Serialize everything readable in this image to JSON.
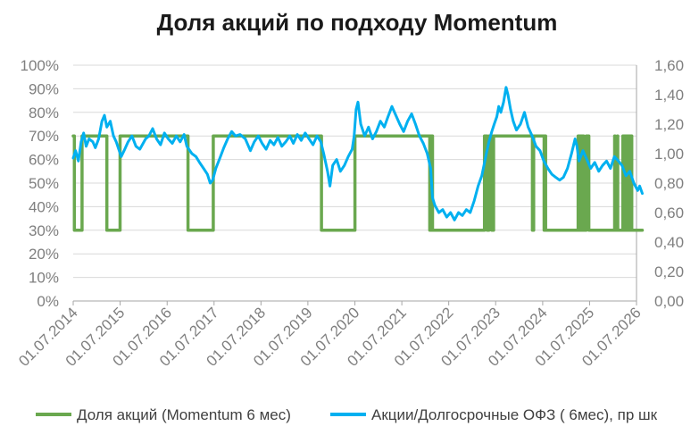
{
  "colors": {
    "equity_share": "#6aa84f",
    "ratio": "#00b0f0",
    "grid": "#d9d9d9",
    "axis": "#a6a6a6",
    "text": "#7f7f7f"
  },
  "chart_data": {
    "type": "line",
    "title": "Доля акций по подходу Momentum",
    "grid": true,
    "legend_position": "bottom",
    "x_range": [
      "01.07.2014",
      "01.07.2026"
    ],
    "x_ticks": [
      "01.07.2014",
      "01.07.2015",
      "01.07.2016",
      "01.07.2017",
      "01.07.2018",
      "01.07.2019",
      "01.07.2020",
      "01.07.2021",
      "01.07.2022",
      "01.07.2023",
      "01.07.2024",
      "01.07.2025",
      "01.07.2026"
    ],
    "y_left": {
      "min": 0,
      "max": 100,
      "step": 10,
      "ticks": [
        "0%",
        "10%",
        "20%",
        "30%",
        "40%",
        "50%",
        "60%",
        "70%",
        "80%",
        "90%",
        "100%"
      ]
    },
    "y_right": {
      "min": 0,
      "max": 1.6,
      "step": 0.2,
      "ticks": [
        "0,00",
        "0,20",
        "0,40",
        "0,60",
        "0,80",
        "1,00",
        "1,20",
        "1,40",
        "1,60"
      ]
    },
    "series": [
      {
        "name": "Доля акций (Momentum 6 мес)",
        "axis": "left",
        "style": "step",
        "points": [
          [
            "2014-07-01",
            70
          ],
          [
            "2014-07-10",
            30
          ],
          [
            "2014-09-01",
            30
          ],
          [
            "2014-09-08",
            70
          ],
          [
            "2015-03-10",
            70
          ],
          [
            "2015-03-20",
            30
          ],
          [
            "2015-06-20",
            30
          ],
          [
            "2015-07-01",
            70
          ],
          [
            "2016-12-01",
            70
          ],
          [
            "2016-12-10",
            30
          ],
          [
            "2017-06-15",
            30
          ],
          [
            "2017-06-25",
            70
          ],
          [
            "2019-10-05",
            70
          ],
          [
            "2019-10-15",
            30
          ],
          [
            "2020-06-20",
            30
          ],
          [
            "2020-07-01",
            70
          ],
          [
            "2022-02-01",
            70
          ],
          [
            "2022-02-03",
            30
          ],
          [
            "2022-02-05",
            70
          ],
          [
            "2022-02-07",
            30
          ],
          [
            "2022-02-09",
            70
          ],
          [
            "2022-02-11",
            30
          ],
          [
            "2022-02-13",
            70
          ],
          [
            "2022-02-15",
            30
          ],
          [
            "2022-02-17",
            70
          ],
          [
            "2022-02-19",
            30
          ],
          [
            "2022-02-22",
            70
          ],
          [
            "2022-02-25",
            30
          ],
          [
            "2023-04-01",
            30
          ],
          [
            "2023-04-05",
            70
          ],
          [
            "2023-04-20",
            70
          ],
          [
            "2023-04-25",
            30
          ],
          [
            "2023-05-05",
            30
          ],
          [
            "2023-05-10",
            70
          ],
          [
            "2023-05-25",
            70
          ],
          [
            "2023-06-01",
            30
          ],
          [
            "2023-06-10",
            30
          ],
          [
            "2023-06-15",
            70
          ],
          [
            "2024-04-10",
            70
          ],
          [
            "2024-04-12",
            30
          ],
          [
            "2024-04-14",
            70
          ],
          [
            "2024-04-16",
            30
          ],
          [
            "2024-04-18",
            70
          ],
          [
            "2024-04-20",
            30
          ],
          [
            "2024-04-22",
            70
          ],
          [
            "2024-07-10",
            70
          ],
          [
            "2024-07-12",
            30
          ],
          [
            "2024-07-14",
            70
          ],
          [
            "2024-07-16",
            30
          ],
          [
            "2024-07-18",
            70
          ],
          [
            "2024-07-20",
            30
          ],
          [
            "2024-07-22",
            70
          ],
          [
            "2024-07-24",
            30
          ],
          [
            "2025-04-01",
            30
          ],
          [
            "2025-04-03",
            70
          ],
          [
            "2025-04-06",
            30
          ],
          [
            "2025-04-09",
            70
          ],
          [
            "2025-04-12",
            30
          ],
          [
            "2025-04-15",
            70
          ],
          [
            "2025-04-18",
            30
          ],
          [
            "2025-04-21",
            70
          ],
          [
            "2025-04-24",
            30
          ],
          [
            "2025-04-27",
            70
          ],
          [
            "2025-04-30",
            30
          ],
          [
            "2025-05-04",
            70
          ],
          [
            "2025-05-08",
            30
          ],
          [
            "2025-05-12",
            70
          ],
          [
            "2025-05-16",
            30
          ],
          [
            "2025-06-01",
            30
          ],
          [
            "2025-06-05",
            70
          ],
          [
            "2025-06-20",
            70
          ],
          [
            "2025-06-25",
            30
          ],
          [
            "2026-01-10",
            30
          ],
          [
            "2026-01-12",
            70
          ],
          [
            "2026-01-15",
            30
          ],
          [
            "2026-01-30",
            30
          ],
          [
            "2026-02-02",
            70
          ],
          [
            "2026-02-05",
            30
          ],
          [
            "2026-03-15",
            30
          ],
          [
            "2026-03-17",
            70
          ],
          [
            "2026-03-19",
            30
          ],
          [
            "2026-03-21",
            70
          ],
          [
            "2026-03-23",
            30
          ],
          [
            "2026-03-25",
            70
          ],
          [
            "2026-03-27",
            30
          ],
          [
            "2026-03-29",
            70
          ],
          [
            "2026-04-01",
            30
          ],
          [
            "2026-04-03",
            70
          ],
          [
            "2026-04-06",
            30
          ],
          [
            "2026-04-09",
            70
          ],
          [
            "2026-04-12",
            30
          ],
          [
            "2026-04-15",
            70
          ],
          [
            "2026-04-18",
            30
          ],
          [
            "2026-04-21",
            70
          ],
          [
            "2026-04-24",
            30
          ],
          [
            "2026-04-27",
            70
          ],
          [
            "2026-04-30",
            30
          ],
          [
            "2026-05-04",
            70
          ],
          [
            "2026-05-08",
            30
          ],
          [
            "2026-05-12",
            70
          ],
          [
            "2026-05-16",
            30
          ],
          [
            "2026-05-20",
            70
          ],
          [
            "2026-05-25",
            30
          ],
          [
            "2026-08-15",
            30
          ]
        ]
      },
      {
        "name": "Акции/Долгосрочные ОФЗ ( 6мес), пр шк",
        "axis": "right",
        "style": "line",
        "points": [
          [
            "2014-07-01",
            0.97
          ],
          [
            "2014-07-20",
            1.02
          ],
          [
            "2014-08-10",
            0.95
          ],
          [
            "2014-09-01",
            1.08
          ],
          [
            "2014-09-20",
            1.14
          ],
          [
            "2014-10-10",
            1.05
          ],
          [
            "2014-11-01",
            1.1
          ],
          [
            "2014-12-01",
            1.08
          ],
          [
            "2014-12-20",
            1.04
          ],
          [
            "2015-01-15",
            1.1
          ],
          [
            "2015-02-10",
            1.22
          ],
          [
            "2015-03-01",
            1.26
          ],
          [
            "2015-03-20",
            1.18
          ],
          [
            "2015-04-15",
            1.22
          ],
          [
            "2015-05-10",
            1.12
          ],
          [
            "2015-06-01",
            1.08
          ],
          [
            "2015-06-20",
            1.03
          ],
          [
            "2015-07-10",
            0.98
          ],
          [
            "2015-08-01",
            1.02
          ],
          [
            "2015-09-01",
            1.08
          ],
          [
            "2015-10-01",
            1.12
          ],
          [
            "2015-11-01",
            1.05
          ],
          [
            "2015-12-01",
            1.03
          ],
          [
            "2016-01-15",
            1.1
          ],
          [
            "2016-02-10",
            1.12
          ],
          [
            "2016-03-10",
            1.17
          ],
          [
            "2016-04-10",
            1.1
          ],
          [
            "2016-05-10",
            1.06
          ],
          [
            "2016-06-10",
            1.14
          ],
          [
            "2016-07-10",
            1.1
          ],
          [
            "2016-08-10",
            1.07
          ],
          [
            "2016-09-10",
            1.12
          ],
          [
            "2016-10-10",
            1.08
          ],
          [
            "2016-11-10",
            1.13
          ],
          [
            "2016-12-01",
            1.05
          ],
          [
            "2017-01-10",
            1.0
          ],
          [
            "2017-02-10",
            0.98
          ],
          [
            "2017-03-10",
            0.94
          ],
          [
            "2017-04-10",
            0.9
          ],
          [
            "2017-05-10",
            0.86
          ],
          [
            "2017-06-01",
            0.8
          ],
          [
            "2017-06-20",
            0.82
          ],
          [
            "2017-07-15",
            0.9
          ],
          [
            "2017-08-15",
            0.97
          ],
          [
            "2017-09-15",
            1.04
          ],
          [
            "2017-10-15",
            1.1
          ],
          [
            "2017-11-15",
            1.15
          ],
          [
            "2017-12-15",
            1.12
          ],
          [
            "2018-01-20",
            1.13
          ],
          [
            "2018-03-01",
            1.1
          ],
          [
            "2018-04-10",
            1.02
          ],
          [
            "2018-05-10",
            1.08
          ],
          [
            "2018-06-10",
            1.12
          ],
          [
            "2018-07-10",
            1.07
          ],
          [
            "2018-08-10",
            1.03
          ],
          [
            "2018-09-10",
            1.09
          ],
          [
            "2018-10-10",
            1.06
          ],
          [
            "2018-11-10",
            1.11
          ],
          [
            "2018-12-10",
            1.05
          ],
          [
            "2019-01-10",
            1.08
          ],
          [
            "2019-02-10",
            1.12
          ],
          [
            "2019-03-10",
            1.07
          ],
          [
            "2019-04-10",
            1.13
          ],
          [
            "2019-05-10",
            1.09
          ],
          [
            "2019-06-10",
            1.14
          ],
          [
            "2019-07-10",
            1.1
          ],
          [
            "2019-08-10",
            1.06
          ],
          [
            "2019-09-10",
            1.12
          ],
          [
            "2019-10-10",
            1.08
          ],
          [
            "2019-11-01",
            1.0
          ],
          [
            "2019-12-01",
            0.88
          ],
          [
            "2019-12-20",
            0.78
          ],
          [
            "2020-01-10",
            0.92
          ],
          [
            "2020-02-10",
            0.96
          ],
          [
            "2020-03-10",
            0.88
          ],
          [
            "2020-04-10",
            0.92
          ],
          [
            "2020-05-10",
            0.98
          ],
          [
            "2020-06-10",
            1.03
          ],
          [
            "2020-06-25",
            1.12
          ],
          [
            "2020-07-10",
            1.3
          ],
          [
            "2020-07-25",
            1.35
          ],
          [
            "2020-08-15",
            1.2
          ],
          [
            "2020-09-15",
            1.12
          ],
          [
            "2020-10-15",
            1.18
          ],
          [
            "2020-11-15",
            1.1
          ],
          [
            "2020-12-15",
            1.15
          ],
          [
            "2021-01-15",
            1.22
          ],
          [
            "2021-02-15",
            1.18
          ],
          [
            "2021-03-15",
            1.25
          ],
          [
            "2021-04-15",
            1.32
          ],
          [
            "2021-05-15",
            1.26
          ],
          [
            "2021-06-15",
            1.2
          ],
          [
            "2021-07-15",
            1.15
          ],
          [
            "2021-08-15",
            1.22
          ],
          [
            "2021-09-15",
            1.27
          ],
          [
            "2021-10-15",
            1.2
          ],
          [
            "2021-11-15",
            1.12
          ],
          [
            "2021-12-15",
            1.07
          ],
          [
            "2022-01-15",
            1.0
          ],
          [
            "2022-02-10",
            0.9
          ],
          [
            "2022-02-25",
            0.7
          ],
          [
            "2022-03-15",
            0.65
          ],
          [
            "2022-04-15",
            0.6
          ],
          [
            "2022-05-15",
            0.62
          ],
          [
            "2022-06-15",
            0.57
          ],
          [
            "2022-07-15",
            0.6
          ],
          [
            "2022-08-15",
            0.55
          ],
          [
            "2022-09-15",
            0.6
          ],
          [
            "2022-10-15",
            0.58
          ],
          [
            "2022-11-15",
            0.62
          ],
          [
            "2022-12-15",
            0.6
          ],
          [
            "2023-01-15",
            0.68
          ],
          [
            "2023-02-15",
            0.78
          ],
          [
            "2023-03-15",
            0.85
          ],
          [
            "2023-04-01",
            0.92
          ],
          [
            "2023-04-20",
            1.0
          ],
          [
            "2023-05-10",
            1.08
          ],
          [
            "2023-06-01",
            1.15
          ],
          [
            "2023-06-20",
            1.2
          ],
          [
            "2023-07-10",
            1.25
          ],
          [
            "2023-07-25",
            1.32
          ],
          [
            "2023-08-10",
            1.28
          ],
          [
            "2023-09-01",
            1.35
          ],
          [
            "2023-09-20",
            1.45
          ],
          [
            "2023-10-05",
            1.4
          ],
          [
            "2023-10-25",
            1.3
          ],
          [
            "2023-11-15",
            1.22
          ],
          [
            "2023-12-10",
            1.16
          ],
          [
            "2024-01-10",
            1.2
          ],
          [
            "2024-02-10",
            1.28
          ],
          [
            "2024-03-10",
            1.18
          ],
          [
            "2024-04-10",
            1.12
          ],
          [
            "2024-05-10",
            1.05
          ],
          [
            "2024-06-10",
            1.02
          ],
          [
            "2024-07-10",
            0.95
          ],
          [
            "2024-08-10",
            0.9
          ],
          [
            "2024-09-10",
            0.86
          ],
          [
            "2024-10-10",
            0.84
          ],
          [
            "2024-11-10",
            0.82
          ],
          [
            "2024-12-10",
            0.84
          ],
          [
            "2025-01-10",
            0.9
          ],
          [
            "2025-02-10",
            1.0
          ],
          [
            "2025-03-10",
            1.1
          ],
          [
            "2025-03-25",
            1.05
          ],
          [
            "2025-04-10",
            0.95
          ],
          [
            "2025-05-10",
            1.02
          ],
          [
            "2025-06-10",
            0.96
          ],
          [
            "2025-07-10",
            0.9
          ],
          [
            "2025-08-10",
            0.94
          ],
          [
            "2025-09-10",
            0.88
          ],
          [
            "2025-10-10",
            0.92
          ],
          [
            "2025-11-10",
            0.95
          ],
          [
            "2025-12-10",
            0.9
          ],
          [
            "2026-01-10",
            0.98
          ],
          [
            "2026-02-10",
            0.95
          ],
          [
            "2026-03-10",
            0.92
          ],
          [
            "2026-04-10",
            0.85
          ],
          [
            "2026-05-10",
            0.88
          ],
          [
            "2026-06-10",
            0.8
          ],
          [
            "2026-07-10",
            0.75
          ],
          [
            "2026-07-25",
            0.78
          ],
          [
            "2026-08-15",
            0.73
          ]
        ]
      }
    ]
  }
}
